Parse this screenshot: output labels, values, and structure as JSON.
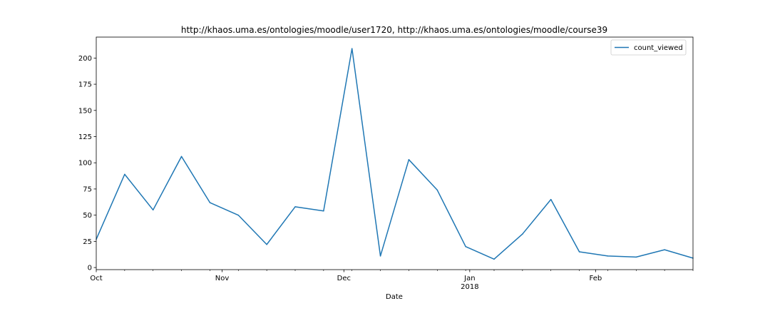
{
  "chart_data": {
    "type": "line",
    "title": "http://khaos.uma.es/ontologies/moodle/user1720, http://khaos.uma.es/ontologies/moodle/course39",
    "xlabel": "Date",
    "ylabel": "",
    "x_ticks": [
      {
        "date": "2017-10-01",
        "label": "Oct",
        "sublabel": ""
      },
      {
        "date": "2017-11-01",
        "label": "Nov",
        "sublabel": ""
      },
      {
        "date": "2017-12-01",
        "label": "Dec",
        "sublabel": ""
      },
      {
        "date": "2018-01-01",
        "label": "Jan",
        "sublabel": "2018"
      },
      {
        "date": "2018-02-01",
        "label": "Feb",
        "sublabel": ""
      }
    ],
    "x_minor_ticks": [
      "2017-10-08",
      "2017-10-15",
      "2017-10-22",
      "2017-10-29",
      "2017-11-05",
      "2017-11-12",
      "2017-11-19",
      "2017-11-26",
      "2017-12-03",
      "2017-12-10",
      "2017-12-17",
      "2017-12-24",
      "2017-12-31",
      "2018-01-07",
      "2018-01-14",
      "2018-01-21",
      "2018-01-28",
      "2018-02-04",
      "2018-02-11",
      "2018-02-18",
      "2018-02-25"
    ],
    "xlim": [
      "2017-10-01",
      "2018-02-25"
    ],
    "yticks": [
      0,
      25,
      50,
      75,
      100,
      125,
      150,
      175,
      200
    ],
    "ylim": [
      -2,
      220
    ],
    "grid": false,
    "legend_position": "top-right",
    "series": [
      {
        "name": "count_viewed",
        "color": "#1f77b4",
        "points": [
          {
            "x": "2017-10-01",
            "y": 27
          },
          {
            "x": "2017-10-08",
            "y": 89
          },
          {
            "x": "2017-10-15",
            "y": 55
          },
          {
            "x": "2017-10-22",
            "y": 106
          },
          {
            "x": "2017-10-29",
            "y": 62
          },
          {
            "x": "2017-11-05",
            "y": 50
          },
          {
            "x": "2017-11-12",
            "y": 22
          },
          {
            "x": "2017-11-19",
            "y": 58
          },
          {
            "x": "2017-11-26",
            "y": 54
          },
          {
            "x": "2017-12-03",
            "y": 209
          },
          {
            "x": "2017-12-10",
            "y": 11
          },
          {
            "x": "2017-12-17",
            "y": 103
          },
          {
            "x": "2017-12-24",
            "y": 74
          },
          {
            "x": "2017-12-31",
            "y": 20
          },
          {
            "x": "2018-01-07",
            "y": 8
          },
          {
            "x": "2018-01-14",
            "y": 32
          },
          {
            "x": "2018-01-21",
            "y": 65
          },
          {
            "x": "2018-01-28",
            "y": 15
          },
          {
            "x": "2018-02-04",
            "y": 11
          },
          {
            "x": "2018-02-11",
            "y": 10
          },
          {
            "x": "2018-02-18",
            "y": 17
          },
          {
            "x": "2018-02-25",
            "y": 9
          }
        ]
      }
    ]
  }
}
